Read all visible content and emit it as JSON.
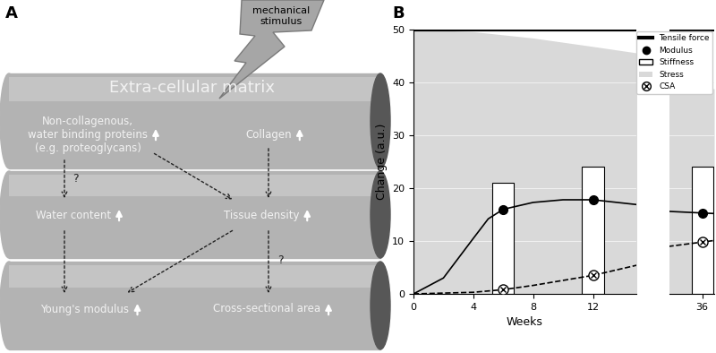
{
  "panel_labels": [
    "A",
    "B"
  ],
  "diagram": {
    "stimulus": "mechanical\nstimulus",
    "layers": [
      {
        "title": "Extra-cellular matrix",
        "nodes": [
          "Non-collagenous,\nwater binding proteins\n(e.g. proteoglycans)",
          "Collagen"
        ]
      },
      {
        "nodes": [
          "Water content",
          "Tissue density"
        ]
      },
      {
        "nodes": [
          "Young's modulus",
          "Cross-sectional area"
        ]
      }
    ],
    "edges": [
      {
        "from": [
          0,
          0
        ],
        "to": [
          1,
          0
        ],
        "label": "?"
      },
      {
        "from": [
          0,
          0
        ],
        "to": [
          1,
          1
        ]
      },
      {
        "from": [
          0,
          1
        ],
        "to": [
          1,
          1
        ]
      },
      {
        "from": [
          1,
          0
        ],
        "to": [
          2,
          0
        ]
      },
      {
        "from": [
          1,
          1
        ],
        "to": [
          2,
          0
        ]
      },
      {
        "from": [
          1,
          1
        ],
        "to": [
          2,
          1
        ],
        "label": "?"
      }
    ]
  },
  "chart_data": {
    "type": "line",
    "xlabel": "Weeks",
    "ylabel": "Change (a.u.)",
    "xlim": [
      [
        0,
        14.9
      ],
      [
        33.8,
        36.8
      ]
    ],
    "xticks": [
      0,
      4,
      8,
      12,
      36
    ],
    "ylim": [
      0,
      50
    ],
    "yticks": [
      0,
      10,
      20,
      30,
      40,
      50
    ],
    "grid": true,
    "legend": "upper right",
    "series": [
      {
        "name": "Tensile force",
        "type": "line",
        "color": "#000000",
        "line_style": "solid",
        "x": [
          0,
          14.9,
          33.8,
          36.8
        ],
        "values": [
          50,
          50,
          50,
          50
        ]
      },
      {
        "name": "Modulus",
        "type": "line",
        "color": "#000000",
        "line_style": "solid",
        "marker": "circle",
        "x": [
          0,
          2,
          4,
          5,
          6,
          8,
          10,
          12,
          14.9,
          33.8,
          36,
          36.8
        ],
        "values": [
          0,
          3,
          10.5,
          14.2,
          16,
          17.3,
          17.8,
          17.8,
          16.9,
          15.6,
          15.3,
          15.2
        ],
        "points": {
          "x": [
            6,
            12,
            36
          ],
          "values": [
            16,
            17.8,
            15.3
          ]
        }
      },
      {
        "name": "Stiffness",
        "type": "bar",
        "color": "#ffffff",
        "x": [
          6,
          12,
          36
        ],
        "values": [
          21,
          24,
          24
        ]
      },
      {
        "name": "Stress",
        "type": "area",
        "color": "#d9d9d9",
        "x": [
          0,
          4,
          8,
          12,
          14.9,
          33.8,
          36.8
        ],
        "values": [
          50,
          49.6,
          48.4,
          46.8,
          45.6,
          40.4,
          38.8
        ]
      },
      {
        "name": "CSA",
        "type": "line",
        "color": "#000000",
        "line_style": "dashed",
        "marker": "circled_x",
        "x": [
          0,
          4,
          6,
          8,
          12,
          14.9,
          33.8,
          36,
          36.8
        ],
        "values": [
          0,
          0.3,
          0.8,
          1.6,
          3.5,
          5.4,
          9.0,
          9.8,
          10.1
        ],
        "points": {
          "x": [
            6,
            12,
            36
          ],
          "values": [
            0.8,
            3.5,
            9.8
          ]
        }
      }
    ]
  }
}
